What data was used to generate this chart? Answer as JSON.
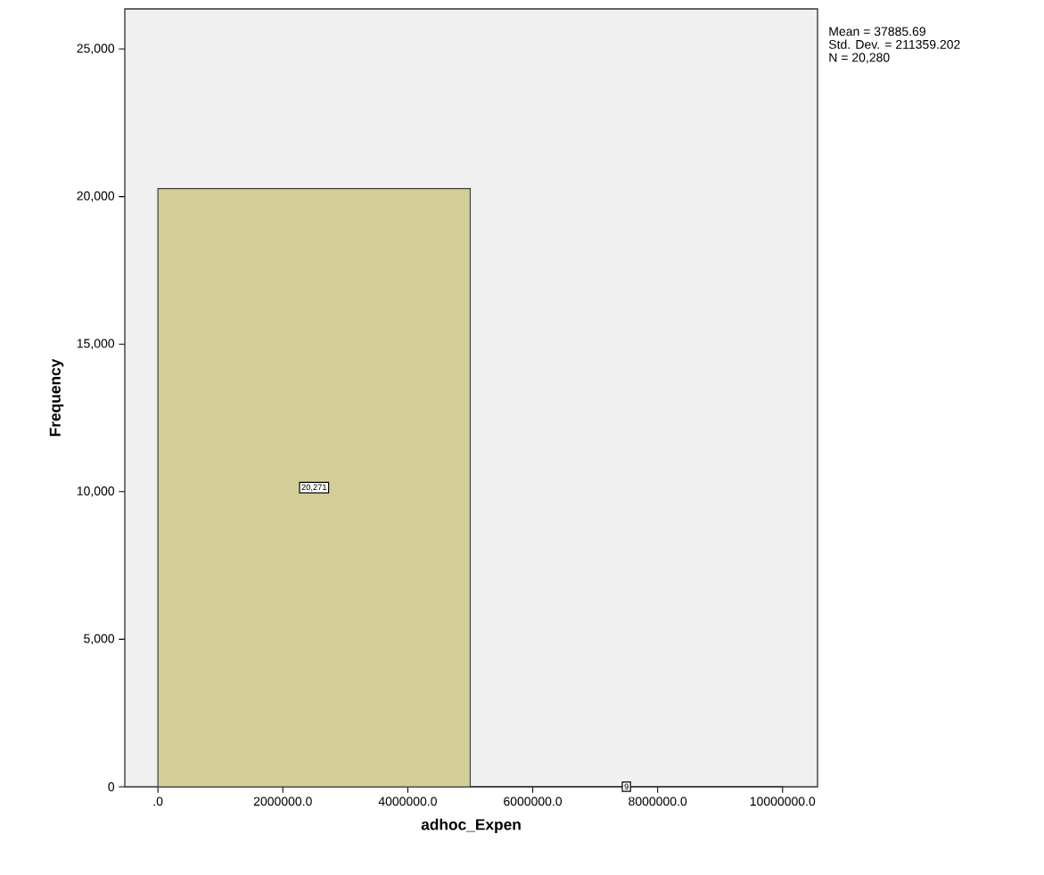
{
  "chart_data": {
    "type": "histogram",
    "xlabel": "adhoc_Expen",
    "ylabel": "Frequency",
    "bins": [
      0,
      5000000,
      10000000
    ],
    "values": [
      20271,
      9
    ],
    "value_labels": [
      "20,271",
      "9"
    ],
    "color": "#d3ce98",
    "xlim": [
      -530000,
      10560000
    ],
    "ylim": [
      0,
      26360
    ],
    "xticks": [
      {
        "value": 0,
        "label": ".0"
      },
      {
        "value": 2000000,
        "label": "2000000.0"
      },
      {
        "value": 4000000,
        "label": "4000000.0"
      },
      {
        "value": 6000000,
        "label": "6000000.0"
      },
      {
        "value": 8000000,
        "label": "8000000.0"
      },
      {
        "value": 10000000,
        "label": "10000000.0"
      }
    ],
    "yticks": [
      0,
      {
        "value": 5000,
        "label": "5,000"
      },
      {
        "value": 10000,
        "label": "10,000"
      },
      {
        "value": 15000,
        "label": "15,000"
      },
      {
        "value": 20000,
        "label": "20,000"
      },
      {
        "value": 25000,
        "label": "25,000"
      }
    ],
    "annotations": [
      "Mean = 37885.69",
      "Std. Dev. = 211359.202",
      "N = 20,280"
    ]
  }
}
